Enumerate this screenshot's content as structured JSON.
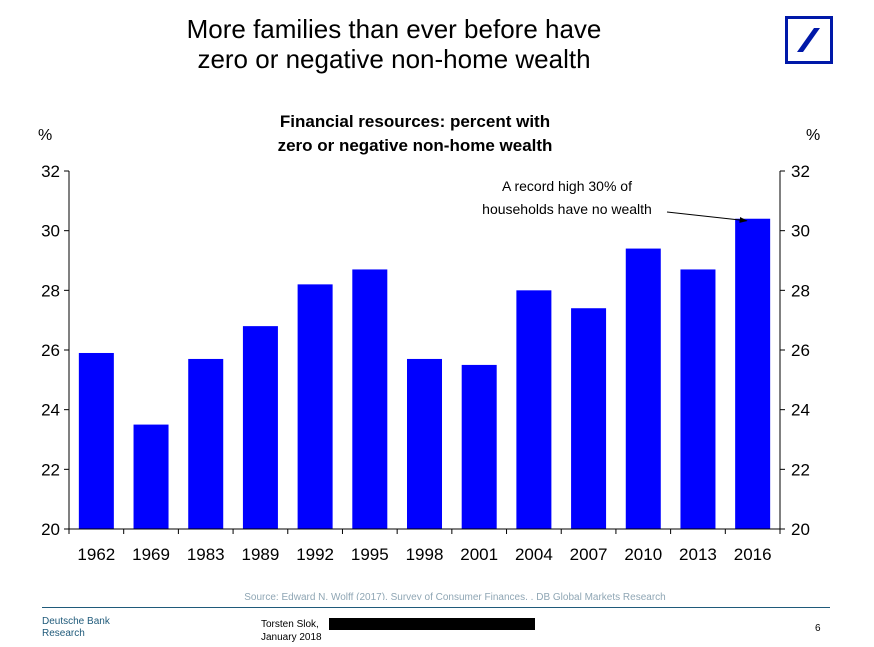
{
  "slide": {
    "title_line1": "More families than ever before have",
    "title_line2": "zero or negative non-home wealth"
  },
  "logo": {
    "icon": "deutsche-bank-slash-logo",
    "color": "#0018a8"
  },
  "chart_data": {
    "type": "bar",
    "title_line1": "Financial resources: percent with",
    "title_line2": "zero or negative non-home wealth",
    "categories": [
      "1962",
      "1969",
      "1983",
      "1989",
      "1992",
      "1995",
      "1998",
      "2001",
      "2004",
      "2007",
      "2010",
      "2013",
      "2016"
    ],
    "values": [
      25.9,
      23.5,
      25.7,
      26.8,
      28.2,
      28.7,
      25.7,
      25.5,
      28.0,
      27.4,
      29.4,
      28.7,
      30.4
    ],
    "ylim": [
      20,
      32
    ],
    "yticks": [
      20,
      22,
      24,
      26,
      28,
      30,
      32
    ],
    "ylabel_left": "%",
    "ylabel_right": "%",
    "bar_color": "#0000ff",
    "annotation": {
      "line1": "A record high 30% of",
      "line2": "households have no wealth",
      "target_category": "2016"
    },
    "source": "Source: Edward N. Wolff (2017). Survey of Consumer Finances, , DB Global Markets Research"
  },
  "footer": {
    "bank_line1": "Deutsche Bank",
    "bank_line2": "Research",
    "author": "Torsten Slok,",
    "date": "January 2018",
    "page": "6"
  }
}
